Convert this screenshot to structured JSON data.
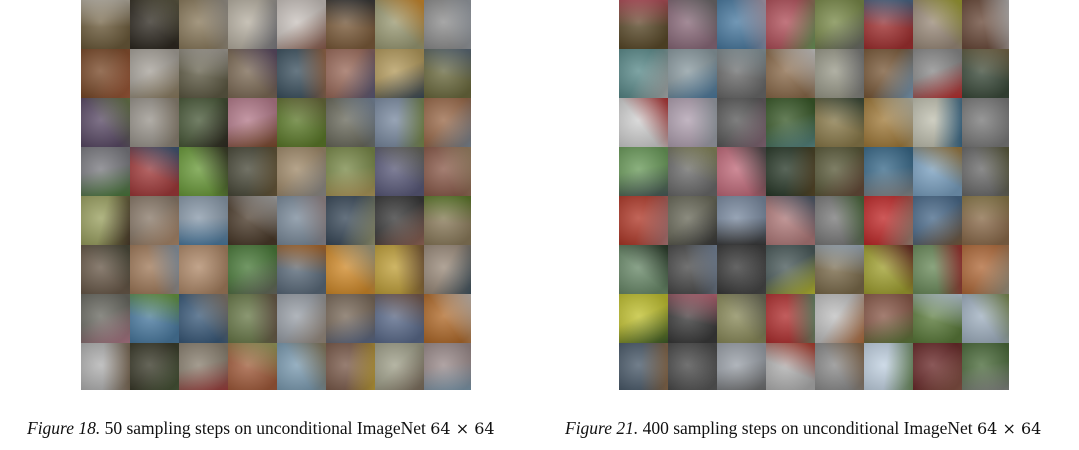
{
  "figures": [
    {
      "label": "Figure 18.",
      "text": " 50 sampling steps on unconditional ImageNet ",
      "math": "64 × 64",
      "palette": [
        "#6b5a3a",
        "#2f2a22",
        "#8a7a5c",
        "#b7b0a2",
        "#c9c2bd",
        "#7b5b3a",
        "#9a9a74",
        "#8e8e8e",
        "#7a4a2a",
        "#a7a29a",
        "#5e5a44",
        "#7c6a55",
        "#3d5260",
        "#9a6a5a",
        "#b39a5c",
        "#6b6a3e",
        "#5a4a66",
        "#9a958d",
        "#4a5a3a",
        "#b37a8a",
        "#5c7a2a",
        "#6a6a5c",
        "#7a8aa0",
        "#9a6a4a",
        "#7a7a80",
        "#a03a3a",
        "#6a9a3a",
        "#4a4a3a",
        "#a08a6a",
        "#7a8a4a",
        "#5a5a7a",
        "#8a5a4a",
        "#9aa060",
        "#8a7a6a",
        "#8a9aaa",
        "#4a3a2a",
        "#7a8a9a",
        "#3a4a5a",
        "#3a3a3a",
        "#8a7a5a",
        "#6a5a4a",
        "#a07a5a",
        "#b08a6a",
        "#4a7a3a",
        "#5a6a7a",
        "#d08a2a",
        "#c0a03a",
        "#9a8a7a",
        "#6a6a62",
        "#4a7aa0",
        "#3a5a7a",
        "#6a7a4a",
        "#9aa0a8",
        "#7a6a5a",
        "#5a6a8a",
        "#b06a2a",
        "#b0b0b0",
        "#3a3a2a",
        "#8a8070",
        "#a05a3a",
        "#7a9ab0",
        "#7a5a4a",
        "#a0a08a",
        "#9a8a8a"
      ]
    },
    {
      "label": "Figure 21.",
      "text": " 400 sampling steps on unconditional ImageNet ",
      "math": "64 × 64",
      "palette": [
        "#5a4a2a",
        "#8a6a7a",
        "#4a7aa0",
        "#b0505a",
        "#7a8a4a",
        "#a03030",
        "#9a8a7a",
        "#6a4a3a",
        "#5a8a8a",
        "#8a9aa0",
        "#6a6a6a",
        "#8a6a4a",
        "#9a9a8a",
        "#7a5a3a",
        "#8a8a8a",
        "#3a4a3a",
        "#d0d0d0",
        "#b0a0b0",
        "#5a5a5a",
        "#3a5a2a",
        "#8a7a4a",
        "#a07a3a",
        "#c0c0b0",
        "#7a7a7a",
        "#6a9a5a",
        "#6a6a6a",
        "#c06a7a",
        "#2a3a2a",
        "#5a5a3a",
        "#3a6a8a",
        "#7aa0c0",
        "#6a6a6a",
        "#b03a2a",
        "#6a6a5a",
        "#7a8aa0",
        "#b07a7a",
        "#7a7a7a",
        "#c02a2a",
        "#4a6a8a",
        "#8a6a4a",
        "#6a8a6a",
        "#4a4a4a",
        "#3a3a3a",
        "#4a5a5a",
        "#7a6a4a",
        "#a0a030",
        "#6a8a5a",
        "#b06a3a",
        "#c0c030",
        "#3a3a3a",
        "#8a8a5a",
        "#b03030",
        "#c0c0c0",
        "#8a5a4a",
        "#5a7a3a",
        "#a0b0c0",
        "#4a5a6a",
        "#4a4a4a",
        "#9aa0a8",
        "#b0b0b0",
        "#8a8a8a",
        "#c0d0e0",
        "#6a2a2a",
        "#4a6a3a"
      ]
    }
  ]
}
